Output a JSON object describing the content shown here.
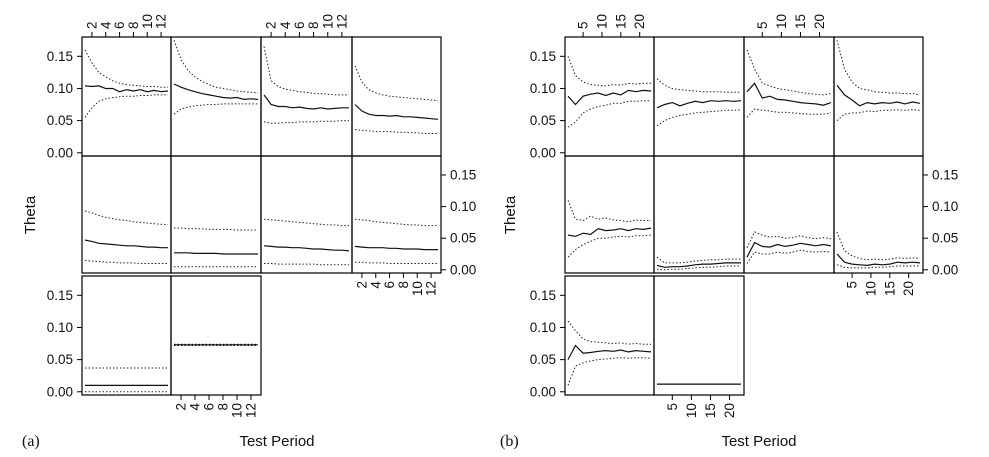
{
  "figure": {
    "panel_labels": [
      "(a)",
      "(b)"
    ],
    "xlabel": "Test Period",
    "ylabel": "Theta",
    "colors": {
      "line": "#111111",
      "band": "#222222",
      "frame": "#000000"
    }
  },
  "chart_data": [
    {
      "type": "line",
      "panel": "(a)",
      "layout": "trellis 4 columns x 3 rows",
      "xlabel": "Test Period",
      "ylabel": "Theta",
      "xlim": [
        1,
        13
      ],
      "ylim": [
        -0.005,
        0.18
      ],
      "xticks": [
        "2",
        "4",
        "6",
        "8",
        "10",
        "12"
      ],
      "xtick_values": [
        2,
        4,
        6,
        8,
        10,
        12
      ],
      "yticks": [
        "0.00",
        "0.05",
        "0.10",
        "0.15"
      ],
      "ytick_values": [
        0.0,
        0.05,
        0.1,
        0.15
      ],
      "x": [
        1,
        2,
        3,
        4,
        5,
        6,
        7,
        8,
        9,
        10,
        11,
        12,
        13
      ],
      "panels": [
        {
          "row": 0,
          "col": 0,
          "mean": [
            0.104,
            0.103,
            0.104,
            0.1,
            0.1,
            0.095,
            0.098,
            0.096,
            0.098,
            0.095,
            0.097,
            0.095,
            0.096
          ],
          "upper": [
            0.16,
            0.14,
            0.125,
            0.118,
            0.112,
            0.108,
            0.106,
            0.105,
            0.104,
            0.103,
            0.103,
            0.102,
            0.102
          ],
          "lower": [
            0.055,
            0.07,
            0.08,
            0.084,
            0.086,
            0.087,
            0.088,
            0.088,
            0.089,
            0.089,
            0.09,
            0.09,
            0.09
          ]
        },
        {
          "row": 0,
          "col": 1,
          "mean": [
            0.107,
            0.102,
            0.098,
            0.095,
            0.092,
            0.09,
            0.088,
            0.086,
            0.085,
            0.086,
            0.083,
            0.084,
            0.083
          ],
          "upper": [
            0.175,
            0.145,
            0.128,
            0.118,
            0.111,
            0.106,
            0.102,
            0.1,
            0.098,
            0.096,
            0.095,
            0.094,
            0.093
          ],
          "lower": [
            0.06,
            0.068,
            0.071,
            0.073,
            0.074,
            0.075,
            0.075,
            0.076,
            0.076,
            0.076,
            0.076,
            0.076,
            0.076
          ]
        },
        {
          "row": 0,
          "col": 2,
          "mean": [
            0.09,
            0.075,
            0.072,
            0.072,
            0.07,
            0.071,
            0.069,
            0.068,
            0.07,
            0.068,
            0.069,
            0.07,
            0.07
          ],
          "upper": [
            0.165,
            0.112,
            0.103,
            0.099,
            0.097,
            0.095,
            0.094,
            0.092,
            0.092,
            0.091,
            0.09,
            0.09,
            0.09
          ],
          "lower": [
            0.048,
            0.046,
            0.046,
            0.047,
            0.047,
            0.048,
            0.048,
            0.048,
            0.049,
            0.049,
            0.049,
            0.05,
            0.05
          ]
        },
        {
          "row": 0,
          "col": 3,
          "mean": [
            0.075,
            0.065,
            0.06,
            0.058,
            0.058,
            0.057,
            0.058,
            0.056,
            0.056,
            0.055,
            0.054,
            0.053,
            0.052
          ],
          "upper": [
            0.135,
            0.11,
            0.098,
            0.093,
            0.09,
            0.088,
            0.087,
            0.086,
            0.085,
            0.084,
            0.083,
            0.082,
            0.081
          ],
          "lower": [
            0.036,
            0.035,
            0.034,
            0.033,
            0.033,
            0.033,
            0.032,
            0.032,
            0.031,
            0.031,
            0.03,
            0.03,
            0.03
          ]
        },
        {
          "row": 1,
          "col": 0,
          "mean": [
            0.047,
            0.045,
            0.042,
            0.041,
            0.04,
            0.039,
            0.038,
            0.038,
            0.037,
            0.036,
            0.036,
            0.035,
            0.035
          ],
          "upper": [
            0.093,
            0.09,
            0.086,
            0.083,
            0.081,
            0.079,
            0.078,
            0.076,
            0.075,
            0.074,
            0.073,
            0.072,
            0.071
          ],
          "lower": [
            0.015,
            0.014,
            0.013,
            0.012,
            0.012,
            0.011,
            0.011,
            0.011,
            0.01,
            0.01,
            0.01,
            0.01,
            0.01
          ]
        },
        {
          "row": 1,
          "col": 1,
          "mean": [
            0.027,
            0.027,
            0.027,
            0.026,
            0.026,
            0.026,
            0.026,
            0.025,
            0.025,
            0.025,
            0.025,
            0.025,
            0.025
          ],
          "upper": [
            0.066,
            0.066,
            0.065,
            0.065,
            0.065,
            0.064,
            0.064,
            0.064,
            0.064,
            0.063,
            0.063,
            0.063,
            0.063
          ],
          "lower": [
            0.005,
            0.005,
            0.005,
            0.005,
            0.005,
            0.005,
            0.005,
            0.005,
            0.005,
            0.005,
            0.005,
            0.005,
            0.005
          ]
        },
        {
          "row": 1,
          "col": 2,
          "mean": [
            0.038,
            0.037,
            0.036,
            0.036,
            0.035,
            0.035,
            0.034,
            0.033,
            0.033,
            0.032,
            0.031,
            0.031,
            0.03
          ],
          "upper": [
            0.08,
            0.079,
            0.078,
            0.077,
            0.076,
            0.075,
            0.074,
            0.073,
            0.072,
            0.071,
            0.071,
            0.07,
            0.07
          ],
          "lower": [
            0.01,
            0.01,
            0.009,
            0.009,
            0.009,
            0.009,
            0.009,
            0.009,
            0.008,
            0.008,
            0.008,
            0.008,
            0.008
          ]
        },
        {
          "row": 1,
          "col": 3,
          "mean": [
            0.037,
            0.036,
            0.035,
            0.035,
            0.035,
            0.034,
            0.034,
            0.033,
            0.033,
            0.033,
            0.032,
            0.032,
            0.032
          ],
          "upper": [
            0.08,
            0.079,
            0.078,
            0.076,
            0.075,
            0.074,
            0.073,
            0.072,
            0.071,
            0.071,
            0.07,
            0.07,
            0.07
          ],
          "lower": [
            0.012,
            0.012,
            0.011,
            0.011,
            0.011,
            0.01,
            0.01,
            0.01,
            0.01,
            0.01,
            0.01,
            0.01,
            0.01
          ]
        },
        {
          "row": 2,
          "col": 0,
          "mean": [
            0.01,
            0.01,
            0.01,
            0.01,
            0.01,
            0.01,
            0.01,
            0.01,
            0.01,
            0.01,
            0.01,
            0.01,
            0.01
          ],
          "upper": [
            0.037,
            0.037,
            0.037,
            0.037,
            0.037,
            0.037,
            0.037,
            0.037,
            0.037,
            0.037,
            0.037,
            0.037,
            0.037
          ],
          "lower": [
            0.0,
            0.0,
            0.0,
            0.0,
            0.0,
            0.0,
            0.0,
            0.0,
            0.0,
            0.0,
            0.0,
            0.0,
            0.0
          ]
        },
        {
          "row": 2,
          "col": 1,
          "mean": [
            0.073,
            0.073,
            0.073,
            0.073,
            0.073,
            0.073,
            0.073,
            0.073,
            0.073,
            0.073,
            0.073,
            0.073,
            0.073
          ],
          "upper": [
            0.074,
            0.074,
            0.074,
            0.074,
            0.074,
            0.074,
            0.074,
            0.074,
            0.074,
            0.074,
            0.074,
            0.074,
            0.074
          ],
          "lower": [
            0.072,
            0.072,
            0.072,
            0.072,
            0.072,
            0.072,
            0.072,
            0.072,
            0.072,
            0.072,
            0.072,
            0.072,
            0.072
          ]
        }
      ]
    },
    {
      "type": "line",
      "panel": "(b)",
      "layout": "trellis 4 columns x 3 rows",
      "xlabel": "Test Period",
      "ylabel": "Theta",
      "xlim": [
        1,
        23
      ],
      "ylim": [
        -0.005,
        0.18
      ],
      "xticks": [
        "5",
        "10",
        "15",
        "20"
      ],
      "xtick_values": [
        5,
        10,
        15,
        20
      ],
      "yticks": [
        "0.00",
        "0.05",
        "0.10",
        "0.15"
      ],
      "ytick_values": [
        0.0,
        0.05,
        0.1,
        0.15
      ],
      "x": [
        1,
        3,
        5,
        7,
        9,
        11,
        13,
        15,
        17,
        19,
        21,
        23
      ],
      "panels": [
        {
          "row": 0,
          "col": 0,
          "mean": [
            0.088,
            0.075,
            0.088,
            0.091,
            0.093,
            0.089,
            0.093,
            0.09,
            0.097,
            0.095,
            0.097,
            0.096
          ],
          "upper": [
            0.15,
            0.12,
            0.11,
            0.106,
            0.105,
            0.104,
            0.106,
            0.105,
            0.108,
            0.107,
            0.108,
            0.108
          ],
          "lower": [
            0.04,
            0.048,
            0.062,
            0.068,
            0.072,
            0.074,
            0.077,
            0.077,
            0.08,
            0.08,
            0.081,
            0.081
          ]
        },
        {
          "row": 0,
          "col": 1,
          "mean": [
            0.07,
            0.075,
            0.078,
            0.073,
            0.077,
            0.08,
            0.078,
            0.081,
            0.08,
            0.081,
            0.08,
            0.081
          ],
          "upper": [
            0.115,
            0.105,
            0.1,
            0.098,
            0.097,
            0.096,
            0.095,
            0.095,
            0.095,
            0.094,
            0.094,
            0.094
          ],
          "lower": [
            0.042,
            0.05,
            0.055,
            0.058,
            0.06,
            0.062,
            0.063,
            0.064,
            0.065,
            0.066,
            0.066,
            0.067
          ]
        },
        {
          "row": 0,
          "col": 2,
          "mean": [
            0.095,
            0.108,
            0.085,
            0.088,
            0.083,
            0.082,
            0.08,
            0.078,
            0.077,
            0.076,
            0.074,
            0.078
          ],
          "upper": [
            0.16,
            0.13,
            0.108,
            0.104,
            0.1,
            0.098,
            0.096,
            0.094,
            0.092,
            0.091,
            0.09,
            0.092
          ],
          "lower": [
            0.055,
            0.068,
            0.066,
            0.065,
            0.063,
            0.063,
            0.062,
            0.061,
            0.06,
            0.06,
            0.06,
            0.062
          ]
        },
        {
          "row": 0,
          "col": 3,
          "mean": [
            0.105,
            0.09,
            0.082,
            0.073,
            0.078,
            0.076,
            0.078,
            0.077,
            0.079,
            0.076,
            0.079,
            0.077
          ],
          "upper": [
            0.175,
            0.13,
            0.11,
            0.1,
            0.098,
            0.095,
            0.094,
            0.093,
            0.093,
            0.092,
            0.092,
            0.09
          ],
          "lower": [
            0.05,
            0.06,
            0.062,
            0.062,
            0.065,
            0.064,
            0.066,
            0.066,
            0.067,
            0.066,
            0.067,
            0.066
          ]
        },
        {
          "row": 1,
          "col": 0,
          "mean": [
            0.055,
            0.053,
            0.058,
            0.056,
            0.065,
            0.062,
            0.063,
            0.065,
            0.062,
            0.065,
            0.064,
            0.066
          ],
          "upper": [
            0.11,
            0.08,
            0.078,
            0.085,
            0.08,
            0.082,
            0.079,
            0.078,
            0.076,
            0.079,
            0.078,
            0.078
          ],
          "lower": [
            0.02,
            0.032,
            0.04,
            0.045,
            0.05,
            0.05,
            0.052,
            0.053,
            0.052,
            0.054,
            0.054,
            0.055
          ]
        },
        {
          "row": 1,
          "col": 1,
          "mean": [
            0.007,
            0.004,
            0.005,
            0.005,
            0.006,
            0.008,
            0.009,
            0.009,
            0.01,
            0.011,
            0.011,
            0.011
          ],
          "upper": [
            0.02,
            0.011,
            0.011,
            0.011,
            0.012,
            0.014,
            0.015,
            0.016,
            0.016,
            0.017,
            0.017,
            0.017
          ],
          "lower": [
            0.001,
            0.0,
            0.001,
            0.001,
            0.002,
            0.003,
            0.004,
            0.004,
            0.005,
            0.006,
            0.006,
            0.006
          ]
        },
        {
          "row": 1,
          "col": 2,
          "mean": [
            0.02,
            0.043,
            0.037,
            0.036,
            0.04,
            0.037,
            0.039,
            0.042,
            0.04,
            0.038,
            0.04,
            0.038
          ],
          "upper": [
            0.035,
            0.06,
            0.055,
            0.052,
            0.053,
            0.05,
            0.051,
            0.054,
            0.051,
            0.049,
            0.051,
            0.049
          ],
          "lower": [
            0.01,
            0.028,
            0.025,
            0.025,
            0.028,
            0.026,
            0.028,
            0.031,
            0.029,
            0.028,
            0.029,
            0.028
          ]
        },
        {
          "row": 1,
          "col": 3,
          "mean": [
            0.025,
            0.012,
            0.009,
            0.008,
            0.007,
            0.009,
            0.008,
            0.009,
            0.012,
            0.011,
            0.012,
            0.011
          ],
          "upper": [
            0.06,
            0.03,
            0.022,
            0.018,
            0.016,
            0.017,
            0.016,
            0.017,
            0.019,
            0.018,
            0.019,
            0.018
          ],
          "lower": [
            0.008,
            0.004,
            0.003,
            0.003,
            0.003,
            0.004,
            0.004,
            0.005,
            0.006,
            0.006,
            0.006,
            0.006
          ]
        },
        {
          "row": 2,
          "col": 0,
          "mean": [
            0.05,
            0.072,
            0.06,
            0.061,
            0.063,
            0.064,
            0.063,
            0.065,
            0.062,
            0.064,
            0.063,
            0.062
          ],
          "upper": [
            0.11,
            0.095,
            0.082,
            0.078,
            0.077,
            0.076,
            0.075,
            0.076,
            0.074,
            0.075,
            0.074,
            0.074
          ],
          "lower": [
            0.01,
            0.04,
            0.045,
            0.048,
            0.05,
            0.051,
            0.052,
            0.053,
            0.052,
            0.053,
            0.053,
            0.052
          ]
        },
        {
          "row": 2,
          "col": 1,
          "mean": [
            0.012,
            0.012,
            0.012,
            0.012,
            0.012,
            0.012,
            0.012,
            0.012,
            0.012,
            0.012,
            0.012,
            0.012
          ],
          "upper": [
            0.012,
            0.012,
            0.012,
            0.012,
            0.012,
            0.012,
            0.012,
            0.012,
            0.012,
            0.012,
            0.012,
            0.012
          ],
          "lower": [
            0.012,
            0.012,
            0.012,
            0.012,
            0.012,
            0.012,
            0.012,
            0.012,
            0.012,
            0.012,
            0.012,
            0.012
          ]
        }
      ]
    }
  ]
}
